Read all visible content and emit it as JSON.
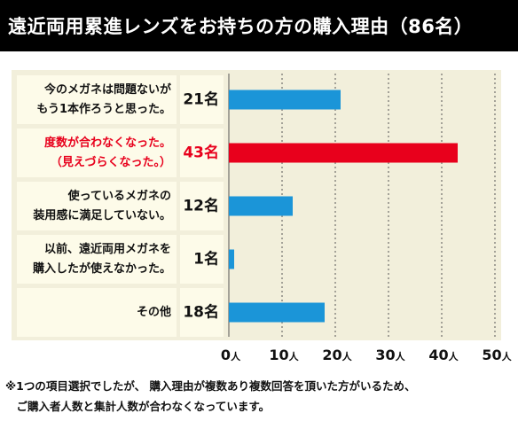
{
  "title": "遠近両用累進レンズをお持ちの方の購入理由（86名）",
  "chart_data": {
    "type": "bar",
    "orientation": "horizontal",
    "categories": [
      {
        "lines": [
          "今のメガネは問題ないが",
          "もう1本作ろうと思った。"
        ],
        "highlight": false
      },
      {
        "lines": [
          "度数が合わなくなった。",
          "（見えづらくなった。）"
        ],
        "highlight": true
      },
      {
        "lines": [
          "使っているメガネの",
          "装用感に満足していない。"
        ],
        "highlight": false
      },
      {
        "lines": [
          "以前、遠近両用メガネを",
          "購入したが使えなかった。"
        ],
        "highlight": false
      },
      {
        "lines": [
          "その他"
        ],
        "highlight": false
      }
    ],
    "values": [
      21,
      43,
      12,
      1,
      18
    ],
    "value_labels": [
      "21名",
      "43名",
      "12名",
      "1名",
      "18名"
    ],
    "xlim": [
      0,
      50
    ],
    "xticks": [
      0,
      10,
      20,
      30,
      40,
      50
    ],
    "tick_unit": "人",
    "grid": true,
    "colors": {
      "bar": "#1b95d8",
      "bar_highlight": "#e8001c",
      "label_highlight": "#e8001c",
      "label": "#111111",
      "panel": "#f2efdb",
      "cell": "#fdfbe9"
    }
  },
  "footnote": [
    "※1つの項目選択でしたが、 購入理由が複数あり複数回答を頂いた方がいるため、",
    "　ご購入者人数と集計人数が合わなくなっています。"
  ]
}
